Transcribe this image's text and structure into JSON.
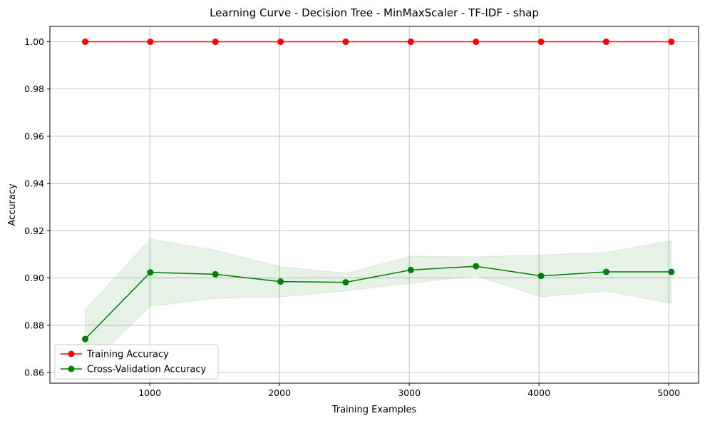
{
  "chart_data": {
    "type": "line",
    "title": "Learning Curve - Decision Tree - MinMaxScaler - TF-IDF - shap",
    "xlabel": "Training Examples",
    "ylabel": "Accuracy",
    "xlim": [
      230,
      5230
    ],
    "ylim": [
      0.8555,
      1.0065
    ],
    "xticks": [
      1000,
      2000,
      3000,
      4000,
      5000
    ],
    "xtick_labels": [
      "1000",
      "2000",
      "3000",
      "4000",
      "5000"
    ],
    "yticks": [
      0.86,
      0.88,
      0.9,
      0.92,
      0.94,
      0.96,
      0.98,
      1.0
    ],
    "ytick_labels": [
      "0.86",
      "0.88",
      "0.90",
      "0.92",
      "0.94",
      "0.96",
      "0.98",
      "1.00"
    ],
    "grid": true,
    "legend_position": "lower-left",
    "x": [
      502,
      1004,
      1506,
      2008,
      2510,
      3012,
      3514,
      4016,
      4518,
      5020
    ],
    "series": [
      {
        "name": "Training Accuracy",
        "color": "#ff0000",
        "values": [
          1.0,
          1.0,
          1.0,
          1.0,
          1.0,
          1.0,
          1.0,
          1.0,
          1.0,
          1.0
        ],
        "band_upper": [
          1.0,
          1.0,
          1.0,
          1.0,
          1.0,
          1.0,
          1.0,
          1.0,
          1.0,
          1.0
        ],
        "band_lower": [
          1.0,
          1.0,
          1.0,
          1.0,
          1.0,
          1.0,
          1.0,
          1.0,
          1.0,
          1.0
        ],
        "band_color": "#ff0000"
      },
      {
        "name": "Cross-Validation Accuracy",
        "color": "#008000",
        "values": [
          0.8742,
          0.9024,
          0.9016,
          0.8985,
          0.8982,
          0.9034,
          0.905,
          0.9009,
          0.9026,
          0.9026
        ],
        "band_upper": [
          0.8865,
          0.9165,
          0.9118,
          0.9048,
          0.902,
          0.9092,
          0.909,
          0.9098,
          0.9108,
          0.9158
        ],
        "band_lower": [
          0.8615,
          0.888,
          0.8914,
          0.892,
          0.8945,
          0.8978,
          0.901,
          0.892,
          0.8945,
          0.8892
        ],
        "band_color": "#008000"
      }
    ]
  }
}
